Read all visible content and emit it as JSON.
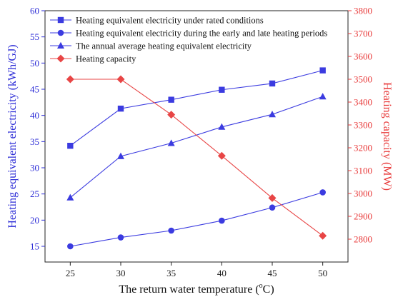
{
  "chart_data": {
    "type": "line",
    "x": [
      25,
      30,
      35,
      40,
      45,
      50
    ],
    "x_ticks": [
      25,
      30,
      35,
      40,
      45,
      50
    ],
    "xlabel_text": "The return water temperature (",
    "xlabel_unit_o": "o",
    "xlabel_unit_c": "C)",
    "xlim": [
      22.5,
      52.5
    ],
    "ylabel_left": "Heating equivalent electricity (kWh/GJ)",
    "ylim_left": [
      12,
      60
    ],
    "yticks_left": [
      15,
      20,
      25,
      30,
      35,
      40,
      45,
      50,
      55,
      60
    ],
    "ylabel_right": "Heating capacity (MW)",
    "ylim_right": [
      2700,
      3800
    ],
    "yticks_right": [
      2800,
      2900,
      3000,
      3100,
      3200,
      3300,
      3400,
      3500,
      3600,
      3700,
      3800
    ],
    "legend_position": "top-left",
    "series": [
      {
        "name": "Heating equivalent electricity under rated conditions",
        "axis": "left",
        "marker": "square",
        "color": "#3b3be0",
        "values": [
          34.2,
          41.3,
          43.0,
          44.9,
          46.1,
          48.6
        ]
      },
      {
        "name": "Heating equivalent electricity during the early and late heating periods",
        "axis": "left",
        "marker": "circle",
        "color": "#3b3be0",
        "values": [
          15.0,
          16.7,
          18.0,
          19.9,
          22.4,
          25.3
        ]
      },
      {
        "name": "The annual average heating equivalent electricity",
        "axis": "left",
        "marker": "triangle",
        "color": "#3b3be0",
        "values": [
          24.3,
          32.2,
          34.7,
          37.8,
          40.2,
          43.6
        ]
      },
      {
        "name": "Heating capacity",
        "axis": "right",
        "marker": "diamond",
        "color": "#e84545",
        "values": [
          3500,
          3500,
          3345,
          3165,
          2980,
          2815
        ]
      }
    ]
  }
}
